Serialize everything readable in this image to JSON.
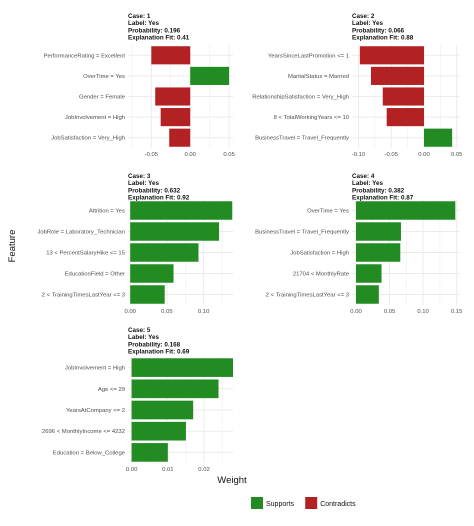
{
  "chart_data": [
    {
      "type": "bar",
      "case_label": "Case: 1",
      "label_line": "Label: Yes",
      "prob_line": "Probability: 0.196",
      "fit_line": "Explanation Fit: 0.41",
      "categories": [
        "PerformanceRating = Excellent",
        "OverTime = Yes",
        "Gender = Female",
        "JobInvolvement = High",
        "JobSatisfaction = Very_High"
      ],
      "values": [
        -0.05,
        0.05,
        -0.045,
        -0.038,
        -0.027
      ],
      "xlim": [
        -0.08,
        0.055
      ],
      "xticks": [
        -0.05,
        0.0,
        0.05
      ],
      "xtick_labels": [
        "-0.05",
        "0.00",
        "0.05"
      ]
    },
    {
      "type": "bar",
      "case_label": "Case: 2",
      "label_line": "Label: Yes",
      "prob_line": "Probability: 0.066",
      "fit_line": "Explanation Fit: 0.88",
      "categories": [
        "YearsSinceLastPromotion <= 1",
        "MaritalStatus = Married",
        "RelationshipSatisfaction = Very_High",
        "8 < TotalWorkingYears <= 10",
        "BusinessTravel = Travel_Frequently"
      ],
      "values": [
        -0.098,
        -0.081,
        -0.063,
        -0.057,
        0.043
      ],
      "xlim": [
        -0.11,
        0.055
      ],
      "xticks": [
        -0.1,
        -0.05,
        0.0,
        0.05
      ],
      "xtick_labels": [
        "-0.10",
        "-0.05",
        "0.00",
        "0.05"
      ]
    },
    {
      "type": "bar",
      "case_label": "Case: 3",
      "label_line": "Label: Yes",
      "prob_line": "Probability: 0.632",
      "fit_line": "Explanation Fit: 0.92",
      "categories": [
        "Attrition = Yes",
        "JobRole = Laboratory_Technician",
        "13 < PercentSalaryHike <= 15",
        "EducationField = Other",
        "2 < TrainingTimesLastYear <= 3"
      ],
      "values": [
        0.139,
        0.121,
        0.093,
        0.059,
        0.047
      ],
      "xlim": [
        -0.003,
        0.14
      ],
      "xticks": [
        0.0,
        0.05,
        0.1
      ],
      "xtick_labels": [
        "0.00",
        "0.05",
        "0.10"
      ]
    },
    {
      "type": "bar",
      "case_label": "Case: 4",
      "label_line": "Label: Yes",
      "prob_line": "Probability: 0.382",
      "fit_line": "Explanation Fit: 0.87",
      "categories": [
        "OverTime = Yes",
        "BusinessTravel = Travel_Frequently",
        "JobSatisfaction = High",
        "21704 < MonthlyRate",
        "2 < TrainingTimesLastYear <= 3"
      ],
      "values": [
        0.148,
        0.067,
        0.066,
        0.038,
        0.034
      ],
      "xlim": [
        -0.006,
        0.155
      ],
      "xticks": [
        0.0,
        0.05,
        0.1,
        0.15
      ],
      "xtick_labels": [
        "0.00",
        "0.05",
        "0.10",
        "0.15"
      ]
    },
    {
      "type": "bar",
      "case_label": "Case: 5",
      "label_line": "Label: Yes",
      "prob_line": "Probability: 0.168",
      "fit_line": "Explanation Fit: 0.69",
      "categories": [
        "JobInvolvement = High",
        "Age <= 29",
        "YearsAtCompany <= 2",
        "2696 < MonthlyIncome <= 4232",
        "Education = Below_College"
      ],
      "values": [
        0.028,
        0.024,
        0.017,
        0.015,
        0.01
      ],
      "xlim": [
        -0.001,
        0.028
      ],
      "xticks": [
        0.0,
        0.01,
        0.02
      ],
      "xtick_labels": [
        "0.00",
        "0.01",
        "0.02"
      ]
    }
  ],
  "ylabel": "Feature",
  "xlabel": "Weight",
  "legend": {
    "position": "bottom",
    "items": [
      {
        "label": "Supports",
        "color": "#228b22"
      },
      {
        "label": "Contradicts",
        "color": "#b22222"
      }
    ]
  },
  "colors": {
    "supports": "#228b22",
    "contradicts": "#b22222",
    "grid": "#ebebeb"
  }
}
